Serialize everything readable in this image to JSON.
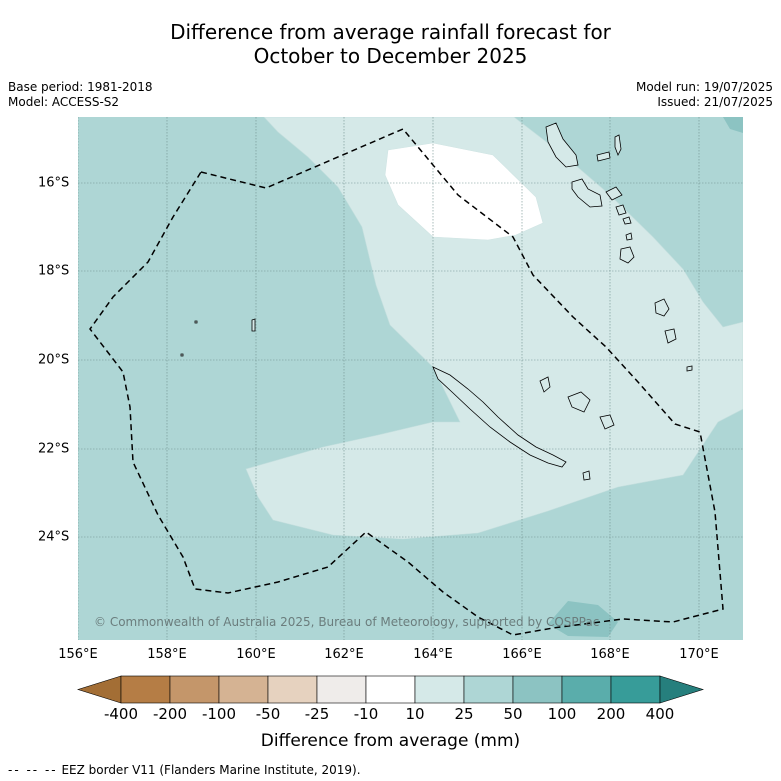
{
  "title_line1": "Difference from average rainfall forecast for",
  "title_line2": "October to December 2025",
  "base_period": "Base period: 1981-2018",
  "model": "Model: ACCESS-S2",
  "model_run": "Model run: 19/07/2025",
  "issued": "Issued: 21/07/2025",
  "copyright": "© Commonwealth of Australia 2025, Bureau of Meteorology, supported by COSPPac",
  "lon_labels": [
    "156°E",
    "158°E",
    "160°E",
    "162°E",
    "164°E",
    "166°E",
    "168°E",
    "170°E"
  ],
  "lat_labels": [
    "16°S",
    "18°S",
    "20°S",
    "22°S",
    "24°S"
  ],
  "colorbar": {
    "ticks": [
      "-400",
      "-200",
      "-100",
      "-50",
      "-25",
      "-10",
      "10",
      "25",
      "50",
      "100",
      "200",
      "400"
    ],
    "colors": [
      "#a36e35",
      "#b57d45",
      "#c4966a",
      "#d5b393",
      "#e6d2bf",
      "#efecea",
      "#ffffff",
      "#d5e9e8",
      "#aed6d5",
      "#8cc3c2",
      "#5aadab",
      "#379c99",
      "#267f7d"
    ],
    "title": "Difference from average (mm)"
  },
  "map_colors": {
    "ocean_25_50": "#aed6d5",
    "band_10_25": "#d5e9e8",
    "band_neg10_10": "#ffffff",
    "band_50_100": "#8cc3c2"
  },
  "legend_note": "EEZ border V11 (Flanders Marine Institute, 2019)."
}
